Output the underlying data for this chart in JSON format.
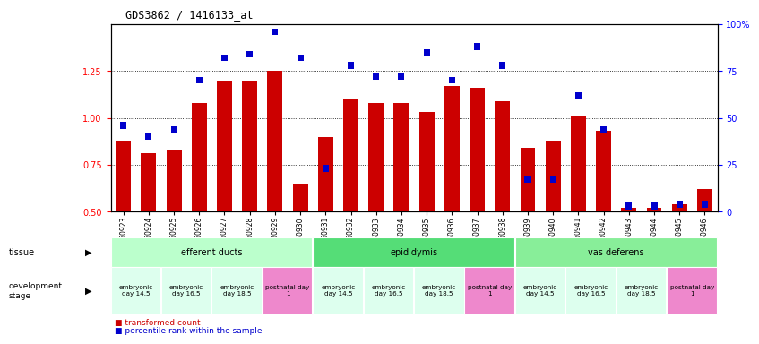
{
  "title": "GDS3862 / 1416133_at",
  "samples": [
    "GSM560923",
    "GSM560924",
    "GSM560925",
    "GSM560926",
    "GSM560927",
    "GSM560928",
    "GSM560929",
    "GSM560930",
    "GSM560931",
    "GSM560932",
    "GSM560933",
    "GSM560934",
    "GSM560935",
    "GSM560936",
    "GSM560937",
    "GSM560938",
    "GSM560939",
    "GSM560940",
    "GSM560941",
    "GSM560942",
    "GSM560943",
    "GSM560944",
    "GSM560945",
    "GSM560946"
  ],
  "red_values": [
    0.88,
    0.81,
    0.83,
    1.08,
    1.2,
    1.2,
    1.25,
    0.65,
    0.9,
    1.1,
    1.08,
    1.08,
    1.03,
    1.17,
    1.16,
    1.09,
    0.84,
    0.88,
    1.01,
    0.93,
    0.52,
    0.52,
    0.54,
    0.62
  ],
  "blue_values": [
    46,
    40,
    44,
    70,
    82,
    84,
    96,
    82,
    23,
    78,
    72,
    72,
    85,
    70,
    88,
    78,
    17,
    17,
    62,
    44,
    3,
    3,
    4,
    4
  ],
  "tissue_data": [
    {
      "label": "efferent ducts",
      "start": 0,
      "end": 8,
      "color": "#bbffcc"
    },
    {
      "label": "epididymis",
      "start": 8,
      "end": 16,
      "color": "#55dd77"
    },
    {
      "label": "vas deferens",
      "start": 16,
      "end": 24,
      "color": "#88ee99"
    }
  ],
  "dev_stages": [
    {
      "label": "embryonic\nday 14.5",
      "start": 0,
      "end": 2,
      "color": "#ddffee"
    },
    {
      "label": "embryonic\nday 16.5",
      "start": 2,
      "end": 4,
      "color": "#ddffee"
    },
    {
      "label": "embryonic\nday 18.5",
      "start": 4,
      "end": 6,
      "color": "#ddffee"
    },
    {
      "label": "postnatal day\n1",
      "start": 6,
      "end": 8,
      "color": "#ee88cc"
    },
    {
      "label": "embryonic\nday 14.5",
      "start": 8,
      "end": 10,
      "color": "#ddffee"
    },
    {
      "label": "embryonic\nday 16.5",
      "start": 10,
      "end": 12,
      "color": "#ddffee"
    },
    {
      "label": "embryonic\nday 18.5",
      "start": 12,
      "end": 14,
      "color": "#ddffee"
    },
    {
      "label": "postnatal day\n1",
      "start": 14,
      "end": 16,
      "color": "#ee88cc"
    },
    {
      "label": "embryonic\nday 14.5",
      "start": 16,
      "end": 18,
      "color": "#ddffee"
    },
    {
      "label": "embryonic\nday 16.5",
      "start": 18,
      "end": 20,
      "color": "#ddffee"
    },
    {
      "label": "embryonic\nday 18.5",
      "start": 20,
      "end": 22,
      "color": "#ddffee"
    },
    {
      "label": "postnatal day\n1",
      "start": 22,
      "end": 24,
      "color": "#ee88cc"
    }
  ],
  "ylim_left": [
    0.5,
    1.5
  ],
  "ylim_right": [
    0,
    100
  ],
  "yticks_left": [
    0.5,
    0.75,
    1.0,
    1.25
  ],
  "yticks_right": [
    0,
    25,
    50,
    75,
    100
  ],
  "ytick_labels_right": [
    "0",
    "25",
    "50",
    "75",
    "100%"
  ],
  "bar_color_red": "#cc0000",
  "bar_color_blue": "#0000cc",
  "bar_width": 0.6,
  "blue_bar_width": 0.25,
  "background_color": "#ffffff"
}
